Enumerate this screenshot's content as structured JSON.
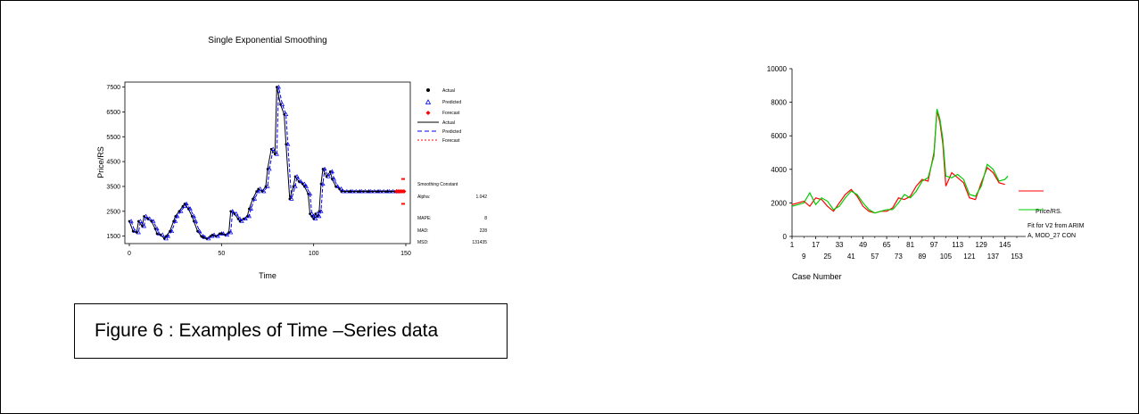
{
  "caption": "Figure 6 : Examples of Time –Series data",
  "chart_data": [
    {
      "type": "line",
      "title": "Single Exponential Smoothing",
      "xlabel": "Time",
      "ylabel": "Price/RS",
      "xlim": [
        0,
        150
      ],
      "ylim": [
        1200,
        7700
      ],
      "xticks": [
        "0",
        "50",
        "100",
        "150"
      ],
      "yticks": [
        "1500",
        "2500",
        "3500",
        "4500",
        "5500",
        "6500",
        "7500"
      ],
      "legend": [
        "Actual",
        "Predicted",
        "Forecast",
        "Actual",
        "Predicted",
        "Forecast"
      ],
      "legend_position": "right",
      "stats": {
        "smoothing_constant_label": "Smoothing Constant",
        "alpha_label": "Alpha:",
        "alpha": "1.042",
        "mape_label": "MAPE:",
        "mape": "8",
        "mad_label": "MAD:",
        "mad": "228",
        "msd_label": "MSD:",
        "msd": "131435"
      },
      "series": [
        {
          "name": "Actual",
          "color": "#000000",
          "x": [
            0,
            2,
            4,
            5,
            7,
            8,
            10,
            12,
            14,
            15,
            17,
            19,
            20,
            22,
            24,
            25,
            27,
            29,
            30,
            32,
            34,
            35,
            37,
            39,
            40,
            42,
            44,
            45,
            47,
            49,
            50,
            52,
            54,
            55,
            57,
            59,
            60,
            62,
            64,
            65,
            67,
            69,
            70,
            72,
            74,
            75,
            77,
            79,
            80,
            82,
            84,
            85,
            87,
            89,
            90,
            92,
            94,
            95,
            97,
            98,
            99,
            100,
            101,
            102,
            103,
            104,
            105,
            107,
            109,
            110,
            112,
            114,
            115,
            117,
            119,
            120,
            122,
            124,
            125,
            127,
            129,
            130,
            132,
            134,
            135,
            137,
            139,
            140,
            142,
            144,
            145
          ],
          "y": [
            2100,
            1700,
            1650,
            2100,
            1900,
            2300,
            2200,
            2100,
            1800,
            1600,
            1550,
            1400,
            1500,
            1700,
            2100,
            2300,
            2500,
            2700,
            2800,
            2600,
            2300,
            2100,
            1700,
            1500,
            1450,
            1400,
            1500,
            1550,
            1500,
            1600,
            1600,
            1550,
            1650,
            2500,
            2400,
            2200,
            2100,
            2200,
            2300,
            2600,
            3000,
            3300,
            3400,
            3300,
            3500,
            4200,
            5000,
            4800,
            7500,
            6800,
            6400,
            5200,
            3000,
            3500,
            3900,
            3700,
            3600,
            3500,
            3200,
            2400,
            2300,
            2200,
            2400,
            2300,
            2500,
            3600,
            4200,
            3900,
            4100,
            3800,
            3500,
            3400,
            3300,
            3300,
            3300,
            3300,
            3300,
            3300,
            3300,
            3300,
            3300,
            3300,
            3300,
            3300,
            3300,
            3300,
            3300,
            3300,
            3300,
            3300,
            3300
          ]
        },
        {
          "name": "Predicted",
          "color": "#0000ff",
          "x": [
            1,
            3,
            5,
            6,
            8,
            9,
            11,
            13,
            15,
            16,
            18,
            20,
            21,
            23,
            25,
            26,
            28,
            30,
            31,
            33,
            35,
            36,
            38,
            40,
            41,
            43,
            45,
            46,
            48,
            50,
            51,
            53,
            55,
            56,
            58,
            60,
            61,
            63,
            65,
            66,
            68,
            70,
            71,
            73,
            75,
            76,
            78,
            80,
            81,
            83,
            85,
            86,
            88,
            90,
            91,
            93,
            95,
            96,
            98,
            99,
            100,
            101,
            102,
            103,
            104,
            105,
            106,
            108,
            110,
            111,
            113,
            115,
            116,
            118,
            120,
            121,
            123,
            125,
            126,
            128,
            130,
            131,
            133,
            135,
            136,
            138,
            140,
            141,
            143,
            145,
            146
          ],
          "y": [
            2100,
            1700,
            1650,
            2100,
            1900,
            2300,
            2200,
            2100,
            1800,
            1600,
            1550,
            1400,
            1500,
            1700,
            2100,
            2300,
            2500,
            2700,
            2800,
            2600,
            2300,
            2100,
            1700,
            1500,
            1450,
            1400,
            1500,
            1550,
            1500,
            1600,
            1600,
            1550,
            1650,
            2500,
            2400,
            2200,
            2100,
            2200,
            2300,
            2600,
            3000,
            3300,
            3400,
            3300,
            3500,
            4200,
            5000,
            4800,
            7500,
            6800,
            6400,
            5200,
            3000,
            3500,
            3900,
            3700,
            3600,
            3500,
            3200,
            2400,
            2300,
            2200,
            2400,
            2300,
            2500,
            3600,
            4200,
            3900,
            4100,
            3800,
            3500,
            3400,
            3300,
            3300,
            3300,
            3300,
            3300,
            3300,
            3300,
            3300,
            3300,
            3300,
            3300,
            3300,
            3300,
            3300,
            3300,
            3300,
            3300,
            3300,
            3300
          ]
        },
        {
          "name": "Forecast",
          "color": "#ff0000",
          "x": [
            145,
            146,
            147,
            148,
            149
          ],
          "y": [
            3300,
            3300,
            3300,
            3300,
            3300
          ],
          "upper": [
            3800,
            3800,
            3800,
            3800,
            3800
          ],
          "lower": [
            2800,
            2800,
            2800,
            2800,
            2800
          ]
        }
      ]
    },
    {
      "type": "line",
      "xlabel": "Case Number",
      "ylim": [
        0,
        10000
      ],
      "xlim": [
        1,
        153
      ],
      "yticks": [
        "0",
        "2000",
        "4000",
        "6000",
        "8000",
        "10000"
      ],
      "xticks_top": [
        "1",
        "17",
        "33",
        "49",
        "65",
        "81",
        "97",
        "113",
        "129",
        "145"
      ],
      "xticks_bottom": [
        "9",
        "25",
        "41",
        "57",
        "73",
        "89",
        "105",
        "121",
        "137",
        "153"
      ],
      "legend_position": "right",
      "series": [
        {
          "name": "Price/RS.",
          "color": "#ff0000",
          "x": [
            1,
            5,
            9,
            13,
            17,
            21,
            25,
            29,
            33,
            37,
            41,
            45,
            49,
            53,
            57,
            61,
            65,
            69,
            73,
            77,
            81,
            85,
            89,
            93,
            97,
            99,
            101,
            103,
            105,
            109,
            113,
            117,
            121,
            125,
            129,
            133,
            137,
            141,
            145
          ],
          "y": [
            1900,
            2000,
            2100,
            1800,
            2300,
            2200,
            1800,
            1500,
            2000,
            2500,
            2800,
            2400,
            1800,
            1500,
            1400,
            1500,
            1500,
            1700,
            2300,
            2200,
            2400,
            3000,
            3400,
            3300,
            5000,
            7500,
            6800,
            5500,
            3000,
            3800,
            3500,
            3200,
            2300,
            2200,
            3200,
            4100,
            3800,
            3200,
            3100
          ]
        },
        {
          "name": "Fit for V2 from ARIMA, MOD_27 CON",
          "color": "#00cc00",
          "x": [
            1,
            5,
            9,
            13,
            17,
            21,
            25,
            29,
            33,
            37,
            41,
            45,
            49,
            53,
            57,
            61,
            65,
            69,
            73,
            77,
            81,
            85,
            89,
            93,
            97,
            99,
            101,
            103,
            105,
            109,
            113,
            117,
            121,
            125,
            129,
            133,
            137,
            141,
            145,
            147
          ],
          "y": [
            1800,
            1900,
            2000,
            2600,
            1900,
            2300,
            2100,
            1600,
            1800,
            2300,
            2700,
            2500,
            2000,
            1600,
            1400,
            1500,
            1600,
            1600,
            2000,
            2500,
            2300,
            2700,
            3300,
            3500,
            4800,
            7600,
            7000,
            5800,
            3600,
            3500,
            3700,
            3400,
            2500,
            2400,
            3000,
            4300,
            4000,
            3300,
            3400,
            3600
          ]
        }
      ]
    }
  ]
}
